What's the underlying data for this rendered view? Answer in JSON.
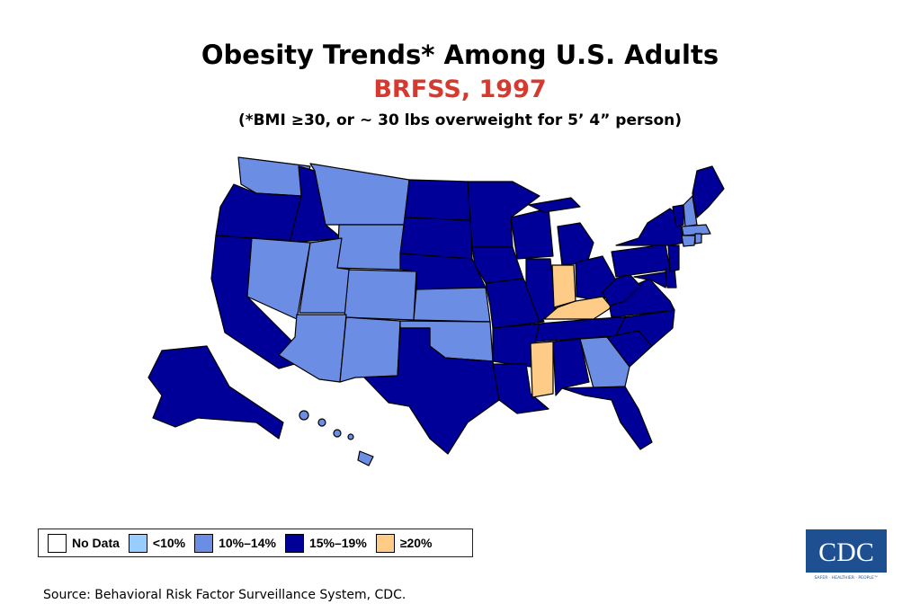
{
  "header": {
    "title": "Obesity Trends* Among U.S. Adults",
    "subtitle": "BRFSS, 1997",
    "note": "(*BMI ≥30, or ~ 30 lbs overweight for 5’ 4” person)"
  },
  "colors": {
    "no_data": "#ffffff",
    "lt10": "#99ccff",
    "c10_14": "#6b8de3",
    "c15_19": "#000099",
    "ge20": "#ffcc88",
    "subtitle": "#d63a2f",
    "cdc_blue": "#1d4f91"
  },
  "legend": [
    {
      "label": "No Data",
      "color": "#ffffff"
    },
    {
      "label": "<10%",
      "color": "#99ccff"
    },
    {
      "label": "10%–14%",
      "color": "#6b8de3"
    },
    {
      "label": "15%–19%",
      "color": "#000099"
    },
    {
      "label": "≥20%",
      "color": "#ffcc88"
    }
  ],
  "map": {
    "categories": {
      "c10_14": [
        "WA",
        "MT",
        "WY",
        "NV",
        "UT",
        "CO",
        "AZ",
        "NM",
        "KS",
        "OK",
        "GA",
        "NH",
        "MA",
        "CT",
        "RI",
        "HI"
      ],
      "ge20": [
        "IN",
        "KY",
        "MS"
      ],
      "c15_19": [
        "OR",
        "CA",
        "ID",
        "ND",
        "SD",
        "NE",
        "TX",
        "MN",
        "IA",
        "MO",
        "AR",
        "LA",
        "WI",
        "IL",
        "MI",
        "OH",
        "TN",
        "AL",
        "FL",
        "SC",
        "NC",
        "VA",
        "WV",
        "PA",
        "NY",
        "NJ",
        "DE",
        "MD",
        "VT",
        "ME",
        "AK"
      ]
    }
  },
  "logo": {
    "text": "CDC",
    "tagline": "SAFER · HEALTHIER · PEOPLE™"
  },
  "source": "Source: Behavioral Risk Factor Surveillance System, CDC."
}
